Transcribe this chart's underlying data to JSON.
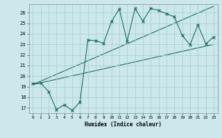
{
  "title": "",
  "xlabel": "Humidex (Indice chaleur)",
  "bg_color": "#cce8ec",
  "line_color": "#1a6b5a",
  "grid_color": "#aacfd4",
  "xlim": [
    -0.5,
    23.5
  ],
  "ylim": [
    16.5,
    26.8
  ],
  "xticks": [
    0,
    1,
    2,
    3,
    4,
    5,
    6,
    7,
    8,
    9,
    10,
    11,
    12,
    13,
    14,
    15,
    16,
    17,
    18,
    19,
    20,
    21,
    22,
    23
  ],
  "yticks": [
    17,
    18,
    19,
    20,
    21,
    22,
    23,
    24,
    25,
    26
  ],
  "line1_x": [
    0,
    1,
    2,
    3,
    4,
    5,
    6,
    7,
    8,
    9,
    10,
    11,
    12,
    13,
    14,
    15,
    16,
    17,
    18,
    19,
    20,
    21,
    22,
    23
  ],
  "line1_y": [
    19.3,
    19.35,
    18.55,
    16.85,
    17.3,
    16.75,
    17.55,
    23.4,
    23.35,
    23.1,
    25.15,
    26.35,
    23.3,
    26.4,
    25.2,
    26.4,
    26.2,
    25.9,
    25.6,
    23.85,
    22.95,
    24.85,
    23.05,
    23.7
  ],
  "line2_x": [
    0,
    23
  ],
  "line2_y": [
    19.2,
    23.0
  ],
  "line3_x": [
    0,
    23
  ],
  "line3_y": [
    19.2,
    26.6
  ]
}
